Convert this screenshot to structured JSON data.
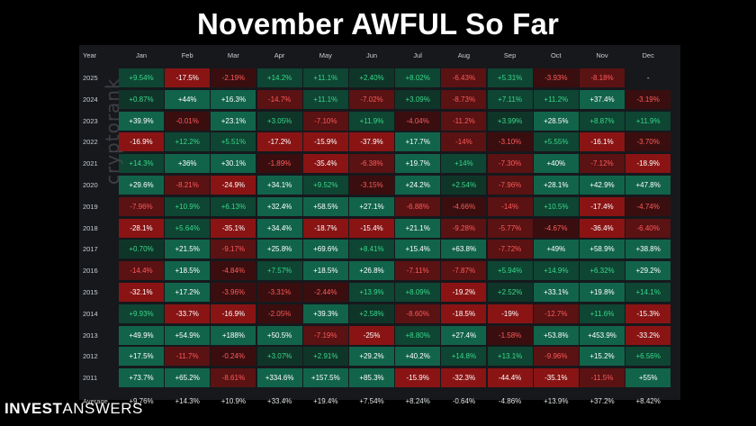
{
  "title": "November AWFUL So Far",
  "watermark": "cryptorank",
  "logo": {
    "bold": "INVEST",
    "light": "ANSWERS"
  },
  "header": {
    "year_label": "Year",
    "months": [
      "Jan",
      "Feb",
      "Mar",
      "Apr",
      "May",
      "Jun",
      "Jul",
      "Aug",
      "Sep",
      "Oct",
      "Nov",
      "Dec"
    ]
  },
  "colors": {
    "panel_bg": "#16181c",
    "pos_strong": "#11644a",
    "pos_weak": "#0f3529",
    "neg_strong": "#8a1414",
    "neg_weak": "#3a0e0f",
    "avg_bg": "transparent"
  },
  "rows": [
    {
      "year": "2025",
      "values": [
        "+9.54%",
        "-17.5%",
        "-2.19%",
        "+14.2%",
        "+11.1%",
        "+2.40%",
        "+8.02%",
        "-6.43%",
        "+5.31%",
        "-3.93%",
        "-8.18%",
        "-"
      ]
    },
    {
      "year": "2024",
      "values": [
        "+0.87%",
        "+44%",
        "+16.3%",
        "-14.7%",
        "+11.1%",
        "-7.02%",
        "+3.09%",
        "-8.73%",
        "+7.11%",
        "+11.2%",
        "+37.4%",
        "-3.19%"
      ]
    },
    {
      "year": "2023",
      "values": [
        "+39.9%",
        "-0.01%",
        "+23.1%",
        "+3.05%",
        "-7.10%",
        "+11.9%",
        "-4.04%",
        "-11.2%",
        "+3.99%",
        "+28.5%",
        "+8.87%",
        "+11.9%"
      ]
    },
    {
      "year": "2022",
      "values": [
        "-16.9%",
        "+12.2%",
        "+5.51%",
        "-17.2%",
        "-15.9%",
        "-37.9%",
        "+17.7%",
        "-14%",
        "-3.10%",
        "+5.55%",
        "-16.1%",
        "-3.70%"
      ]
    },
    {
      "year": "2021",
      "values": [
        "+14.3%",
        "+36%",
        "+30.1%",
        "-1.89%",
        "-35.4%",
        "-6.38%",
        "+19.7%",
        "+14%",
        "-7.30%",
        "+40%",
        "-7.12%",
        "-18.9%"
      ]
    },
    {
      "year": "2020",
      "values": [
        "+29.6%",
        "-8.21%",
        "-24.9%",
        "+34.1%",
        "+9.52%",
        "-3.15%",
        "+24.2%",
        "+2.54%",
        "-7.96%",
        "+28.1%",
        "+42.9%",
        "+47.8%"
      ]
    },
    {
      "year": "2019",
      "values": [
        "-7.96%",
        "+10.9%",
        "+6.13%",
        "+32.4%",
        "+58.5%",
        "+27.1%",
        "-6.88%",
        "-4.66%",
        "-14%",
        "+10.5%",
        "-17.4%",
        "-4.74%"
      ]
    },
    {
      "year": "2018",
      "values": [
        "-28.1%",
        "+5.64%",
        "-35.1%",
        "+34.4%",
        "-18.7%",
        "-15.4%",
        "+21.1%",
        "-9.28%",
        "-5.77%",
        "-4.67%",
        "-36.4%",
        "-6.40%"
      ]
    },
    {
      "year": "2017",
      "values": [
        "+0.70%",
        "+21.5%",
        "-9.17%",
        "+25.8%",
        "+69.6%",
        "+8.41%",
        "+15.4%",
        "+63.8%",
        "-7.72%",
        "+49%",
        "+58.9%",
        "+38.8%"
      ]
    },
    {
      "year": "2016",
      "values": [
        "-14.4%",
        "+18.5%",
        "-4.84%",
        "+7.57%",
        "+18.5%",
        "+26.8%",
        "-7.11%",
        "-7.87%",
        "+5.94%",
        "+14.9%",
        "+6.32%",
        "+29.2%"
      ]
    },
    {
      "year": "2015",
      "values": [
        "-32.1%",
        "+17.2%",
        "-3.96%",
        "-3.31%",
        "-2.44%",
        "+13.9%",
        "+8.09%",
        "-19.2%",
        "+2.52%",
        "+33.1%",
        "+19.8%",
        "+14.1%"
      ]
    },
    {
      "year": "2014",
      "values": [
        "+9.93%",
        "-33.7%",
        "-16.9%",
        "-2.05%",
        "+39.3%",
        "+2.58%",
        "-8.60%",
        "-18.5%",
        "-19%",
        "-12.7%",
        "+11.6%",
        "-15.3%"
      ]
    },
    {
      "year": "2013",
      "values": [
        "+49.9%",
        "+54.9%",
        "+188%",
        "+50.5%",
        "-7.19%",
        "-25%",
        "+8.80%",
        "+27.4%",
        "-1.58%",
        "+53.8%",
        "+453.9%",
        "-33.2%"
      ]
    },
    {
      "year": "2012",
      "values": [
        "+17.5%",
        "-11.7%",
        "-0.24%",
        "+3.07%",
        "+2.91%",
        "+29.2%",
        "+40.2%",
        "+14.8%",
        "+13.1%",
        "-9.96%",
        "+15.2%",
        "+6.56%"
      ]
    },
    {
      "year": "2011",
      "values": [
        "+73.7%",
        "+65.2%",
        "-8.61%",
        "+334.6%",
        "+157.5%",
        "+85.3%",
        "-15.9%",
        "-32.3%",
        "-44.4%",
        "-35.1%",
        "-11.5%",
        "+55%"
      ]
    }
  ],
  "average": {
    "label": "Average",
    "values": [
      "+9.76%",
      "+14.3%",
      "+10.9%",
      "+33.4%",
      "+19.4%",
      "+7.54%",
      "+8.24%",
      "-0.64%",
      "-4.86%",
      "+13.9%",
      "+37.2%",
      "+8.42%"
    ]
  }
}
